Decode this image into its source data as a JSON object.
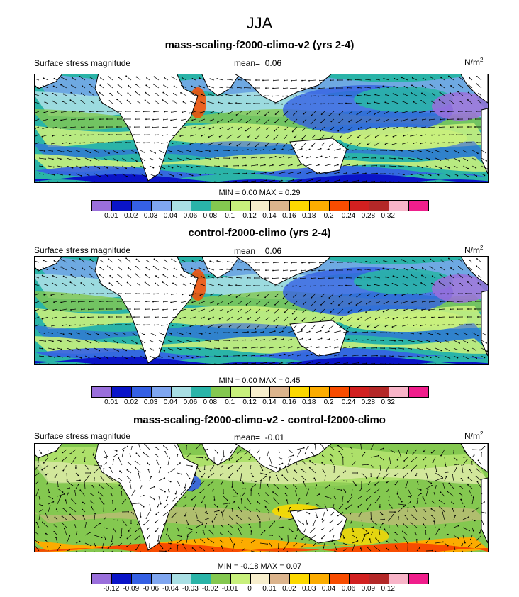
{
  "title": "JJA",
  "colors": {
    "abs_palette": [
      "#9a6fdc",
      "#0a14c8",
      "#3560e4",
      "#7fa6f0",
      "#a9dfe4",
      "#2ab4a8",
      "#84c850",
      "#c8f07c",
      "#f7eecc",
      "#dcb48c",
      "#fcd800",
      "#fcac00",
      "#f84c00",
      "#d22020",
      "#b42828",
      "#f8b4c8",
      "#f01e8c"
    ],
    "diff_palette": [
      "#9a6fdc",
      "#0a14c8",
      "#3560e4",
      "#7fa6f0",
      "#a9dfe4",
      "#2ab4a8",
      "#84c850",
      "#c8f07c",
      "#f7eecc",
      "#dcb48c",
      "#fcd800",
      "#fcac00",
      "#f84c00",
      "#d22020",
      "#b42828",
      "#f8b4c8",
      "#f01e8c"
    ],
    "land": "#ffffff"
  },
  "panels": [
    {
      "title": "mass-scaling-f2000-climo-v2 (yrs 2-4)",
      "field_label": "Surface stress magnitude",
      "mean_label": "mean=",
      "mean_value": "0.06",
      "units_base": "N/m",
      "units_exp": "2",
      "stats": "MIN =  0.00 MAX =   0.29",
      "ticks": [
        "0.01",
        "0.02",
        "0.03",
        "0.04",
        "0.06",
        "0.08",
        "0.1",
        "0.12",
        "0.14",
        "0.16",
        "0.18",
        "0.2",
        "0.24",
        "0.28",
        "0.32"
      ]
    },
    {
      "title": "control-f2000-climo (yrs 2-4)",
      "field_label": "Surface stress magnitude",
      "mean_label": "mean=",
      "mean_value": "0.06",
      "units_base": "N/m",
      "units_exp": "2",
      "stats": "MIN =  0.00 MAX =   0.45",
      "ticks": [
        "0.01",
        "0.02",
        "0.03",
        "0.04",
        "0.06",
        "0.08",
        "0.1",
        "0.12",
        "0.14",
        "0.16",
        "0.18",
        "0.2",
        "0.24",
        "0.28",
        "0.32"
      ]
    },
    {
      "title": "mass-scaling-f2000-climo-v2 - control-f2000-climo",
      "field_label": "Surface stress magnitude",
      "mean_label": "mean=",
      "mean_value": "-0.01",
      "units_base": "N/m",
      "units_exp": "2",
      "stats": "MIN =  -0.18 MAX =   0.07",
      "ticks": [
        "-0.12",
        "-0.09",
        "-0.06",
        "-0.04",
        "-0.03",
        "-0.02",
        "-0.01",
        "0",
        "0.01",
        "0.02",
        "0.03",
        "0.04",
        "0.06",
        "0.09",
        "0.12"
      ]
    }
  ]
}
